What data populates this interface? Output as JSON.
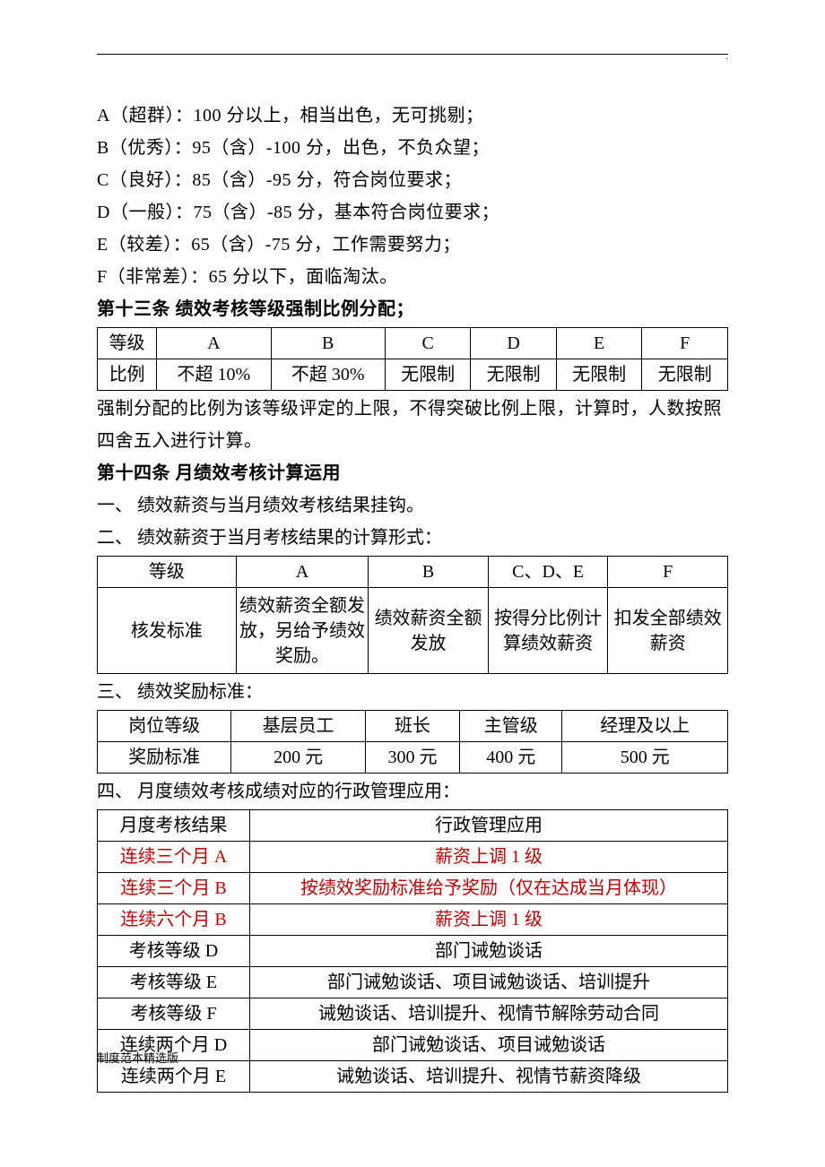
{
  "grades": [
    "A（超群）：100 分以上，相当出色，无可挑剔；",
    "B（优秀）：95（含）-100 分，出色，不负众望；",
    "C（良好）：85（含）-95 分，符合岗位要求；",
    "D（一般）：75（含）-85 分，基本符合岗位要求；",
    "E（较差）：65（含）-75 分，工作需要努力；",
    "F（非常差）：65 分以下，面临淘汰。"
  ],
  "art13": {
    "title": "第十三条  绩效考核等级强制比例分配；",
    "table": {
      "row1": [
        "等级",
        "A",
        "B",
        "C",
        "D",
        "E",
        "F"
      ],
      "row2": [
        "比例",
        "不超 10%",
        "不超 30%",
        "无限制",
        "无限制",
        "无限制",
        "无限制"
      ]
    },
    "note": "强制分配的比例为该等级评定的上限，不得突破比例上限，计算时，人数按照四舍五入进行计算。"
  },
  "art14": {
    "title": "第十四条  月绩效考核计算运用",
    "item1": "一、 绩效薪资与当月绩效考核结果挂钩。",
    "item2": "二、 绩效薪资于当月考核结果的计算形式：",
    "table2": {
      "row1": [
        "等级",
        "A",
        "B",
        "C、D、E",
        "F"
      ],
      "row2": [
        "核发标准",
        "绩效薪资全额发放，另给予绩效奖励。",
        "绩效薪资全额发放",
        "按得分比例计算绩效薪资",
        "扣发全部绩效薪资"
      ]
    },
    "item3": "三、 绩效奖励标准：",
    "table3": {
      "row1": [
        "岗位等级",
        "基层员工",
        "班长",
        "主管级",
        "经理及以上"
      ],
      "row2": [
        "奖励标准",
        "200 元",
        "300 元",
        "400 元",
        "500 元"
      ]
    },
    "item4": "四、 月度绩效考核成绩对应的行政管理应用：",
    "table4": {
      "header": [
        "月度考核结果",
        "行政管理应用"
      ],
      "rows": [
        {
          "k": "连续三个月 A",
          "v": "薪资上调 1 级",
          "red": true
        },
        {
          "k": "连续三个月 B",
          "v": "按绩效奖励标准给予奖励（仅在达成当月体现）",
          "red": true
        },
        {
          "k": "连续六个月 B",
          "v": "薪资上调 1 级",
          "red": true
        },
        {
          "k": "考核等级 D",
          "v": "部门诫勉谈话",
          "red": false
        },
        {
          "k": "考核等级 E",
          "v": "部门诫勉谈话、项目诫勉谈话、培训提升",
          "red": false
        },
        {
          "k": "考核等级 F",
          "v": "诫勉谈话、培训提升、视情节解除劳动合同",
          "red": false
        },
        {
          "k": "连续两个月 D",
          "v": "部门诫勉谈话、项目诫勉谈话",
          "red": false
        },
        {
          "k": "连续两个月 E",
          "v": "诫勉谈话、培训提升、视情节薪资降级",
          "red": false
        }
      ]
    }
  },
  "footer": "制度范本精选版",
  "topDot": "."
}
